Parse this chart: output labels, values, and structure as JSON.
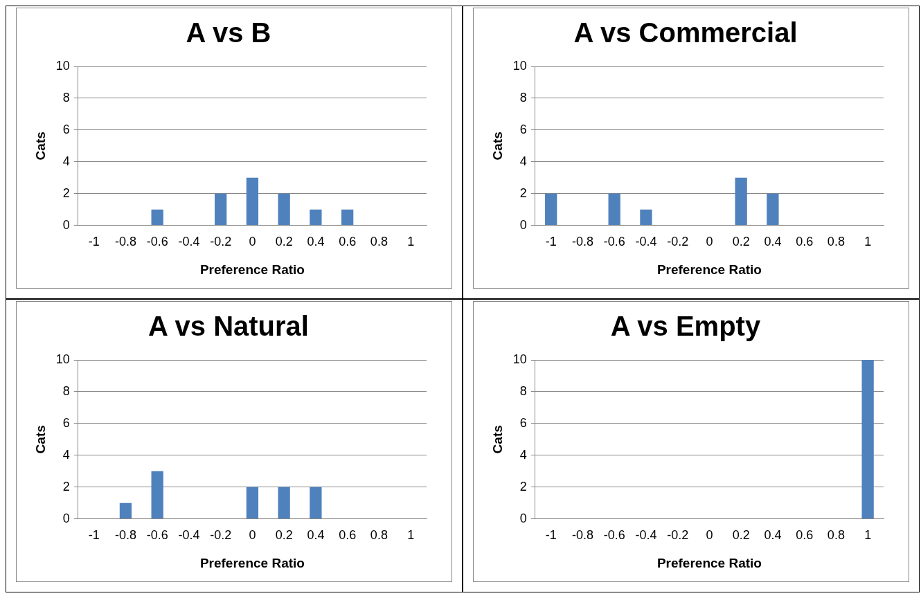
{
  "chart_data": [
    {
      "type": "bar",
      "title": "A vs B",
      "xlabel": "Preference Ratio",
      "ylabel": "Cats",
      "categories": [
        "-1",
        "-0.8",
        "-0.6",
        "-0.4",
        "-0.2",
        "0",
        "0.2",
        "0.4",
        "0.6",
        "0.8",
        "1"
      ],
      "values": [
        0,
        0,
        1,
        0,
        2,
        3,
        2,
        1,
        1,
        0,
        0
      ],
      "color": "#4f81bd",
      "ylim": [
        0,
        10
      ],
      "yticks": [
        0,
        2,
        4,
        6,
        8,
        10
      ],
      "grid": "y",
      "legend": false
    },
    {
      "type": "bar",
      "title": "A vs Commercial",
      "xlabel": "Preference Ratio",
      "ylabel": "Cats",
      "categories": [
        "-1",
        "-0.8",
        "-0.6",
        "-0.4",
        "-0.2",
        "0",
        "0.2",
        "0.4",
        "0.6",
        "0.8",
        "1"
      ],
      "values": [
        2,
        0,
        2,
        1,
        0,
        0,
        3,
        2,
        0,
        0,
        0
      ],
      "color": "#4f81bd",
      "ylim": [
        0,
        10
      ],
      "yticks": [
        0,
        2,
        4,
        6,
        8,
        10
      ],
      "grid": "y",
      "legend": false
    },
    {
      "type": "bar",
      "title": "A vs Natural",
      "xlabel": "Preference Ratio",
      "ylabel": "Cats",
      "categories": [
        "-1",
        "-0.8",
        "-0.6",
        "-0.4",
        "-0.2",
        "0",
        "0.2",
        "0.4",
        "0.6",
        "0.8",
        "1"
      ],
      "values": [
        0,
        1,
        3,
        0,
        0,
        2,
        2,
        2,
        0,
        0,
        0
      ],
      "color": "#4f81bd",
      "ylim": [
        0,
        10
      ],
      "yticks": [
        0,
        2,
        4,
        6,
        8,
        10
      ],
      "grid": "y",
      "legend": false
    },
    {
      "type": "bar",
      "title": "A vs Empty",
      "xlabel": "Preference Ratio",
      "ylabel": "Cats",
      "categories": [
        "-1",
        "-0.8",
        "-0.6",
        "-0.4",
        "-0.2",
        "0",
        "0.2",
        "0.4",
        "0.6",
        "0.8",
        "1"
      ],
      "values": [
        0,
        0,
        0,
        0,
        0,
        0,
        0,
        0,
        0,
        0,
        10
      ],
      "color": "#4f81bd",
      "ylim": [
        0,
        10
      ],
      "yticks": [
        0,
        2,
        4,
        6,
        8,
        10
      ],
      "grid": "y",
      "legend": false
    }
  ]
}
